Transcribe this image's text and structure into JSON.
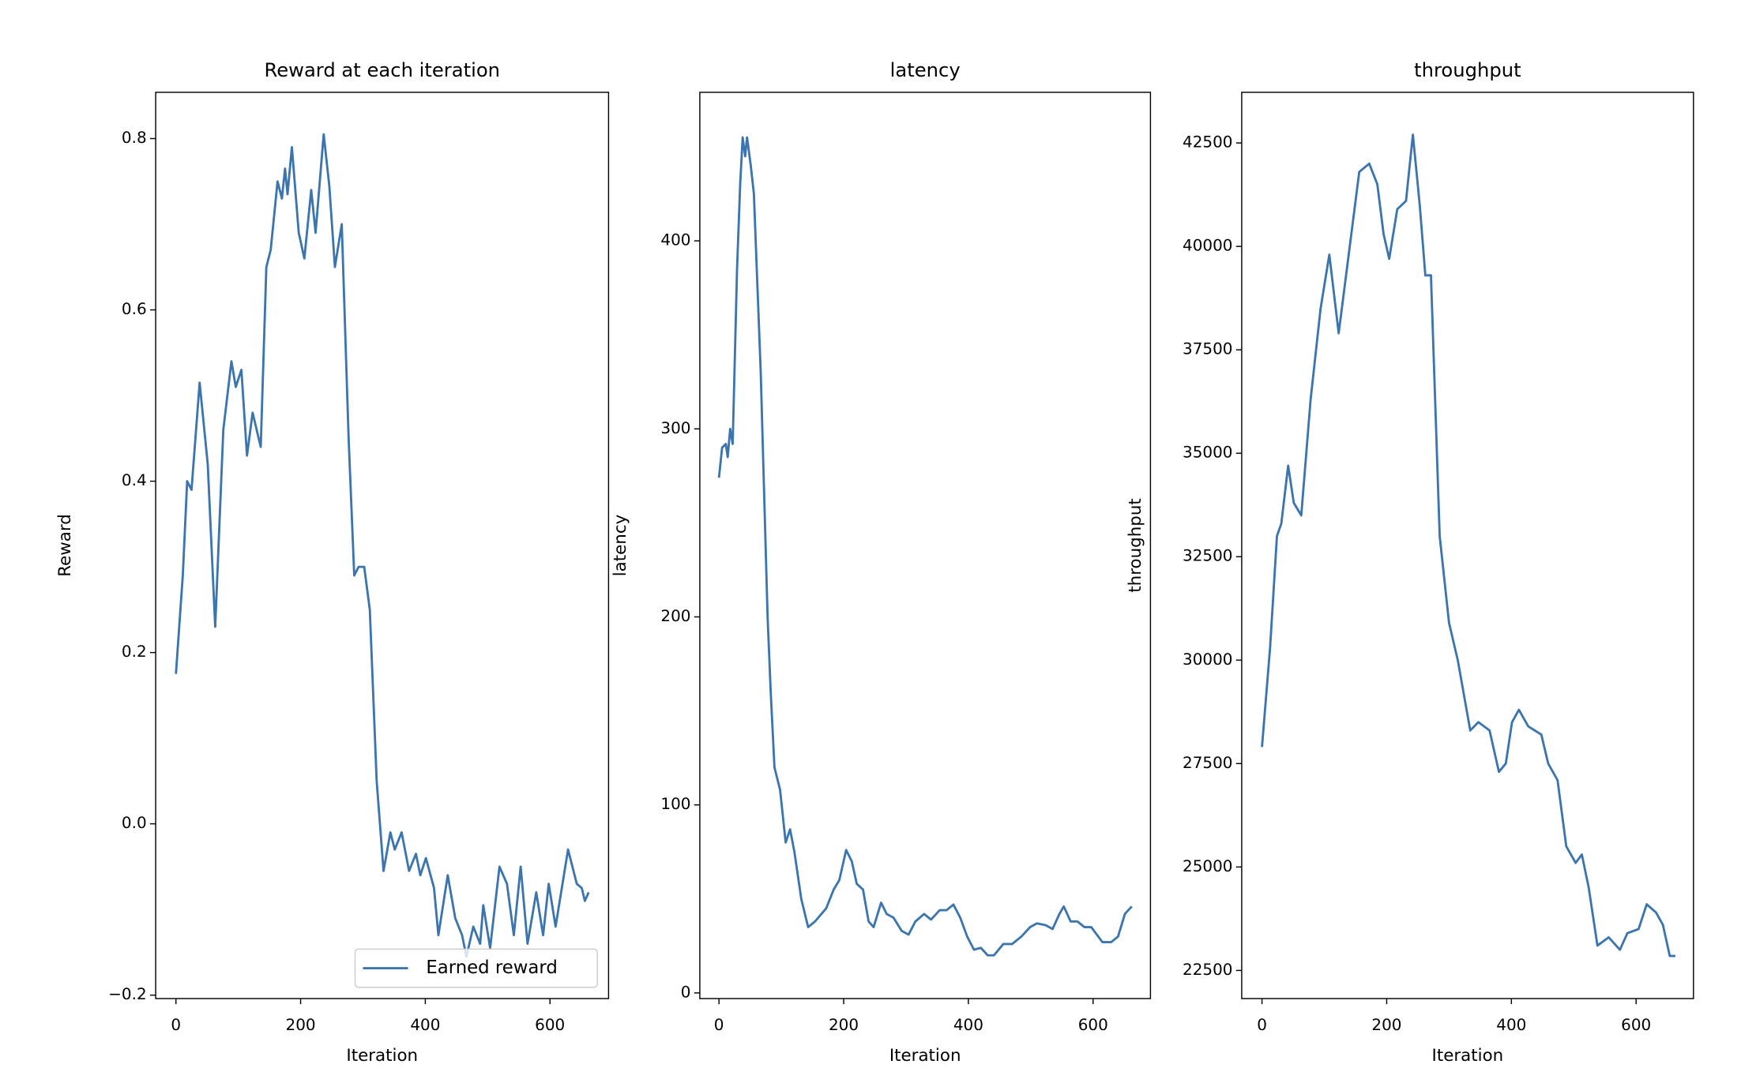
{
  "chart_data": [
    {
      "type": "line",
      "title": "Reward at each iteration",
      "xlabel": "Iteration",
      "ylabel": "Reward",
      "x": [
        0,
        11,
        18,
        25,
        38,
        51,
        63,
        76,
        89,
        96,
        105,
        114,
        123,
        136,
        145,
        152,
        163,
        170,
        175,
        179,
        186,
        197,
        206,
        217,
        224,
        237,
        246,
        255,
        266,
        277,
        286,
        293,
        302,
        311,
        322,
        333,
        344,
        351,
        362,
        374,
        385,
        392,
        401,
        414,
        421,
        436,
        448,
        459,
        466,
        477,
        488,
        493,
        504,
        519,
        531,
        542,
        553,
        564,
        578,
        589,
        598,
        609,
        629,
        643,
        651,
        656,
        662
      ],
      "series": [
        {
          "name": "Earned reward",
          "color": "#3b75af",
          "values": [
            0.175,
            0.29,
            0.4,
            0.39,
            0.515,
            0.42,
            0.23,
            0.46,
            0.54,
            0.51,
            0.53,
            0.43,
            0.48,
            0.44,
            0.65,
            0.67,
            0.75,
            0.73,
            0.765,
            0.735,
            0.79,
            0.69,
            0.66,
            0.74,
            0.69,
            0.805,
            0.745,
            0.65,
            0.7,
            0.45,
            0.29,
            0.3,
            0.3,
            0.25,
            0.05,
            -0.055,
            -0.01,
            -0.03,
            -0.01,
            -0.055,
            -0.035,
            -0.06,
            -0.04,
            -0.075,
            -0.13,
            -0.06,
            -0.11,
            -0.13,
            -0.155,
            -0.12,
            -0.14,
            -0.095,
            -0.145,
            -0.05,
            -0.07,
            -0.13,
            -0.05,
            -0.14,
            -0.08,
            -0.13,
            -0.07,
            -0.12,
            -0.03,
            -0.07,
            -0.075,
            -0.09,
            -0.08
          ]
        }
      ],
      "legend": "lower right",
      "xlim": [
        -32.5,
        694
      ],
      "xticks": [
        0,
        200,
        400,
        600
      ],
      "ylim": [
        -0.204,
        0.854
      ],
      "yticks": [
        {
          "value": -0.2,
          "label": "−0.2"
        },
        {
          "value": 0,
          "label": "0.0"
        },
        0.2,
        0.4,
        0.6,
        0.8
      ]
    },
    {
      "type": "line",
      "title": "latency",
      "xlabel": "Iteration",
      "ylabel": "latency",
      "color": "#3b75af",
      "x": [
        0,
        5,
        11,
        14,
        18,
        22,
        29,
        34,
        38,
        42,
        45,
        51,
        56,
        67,
        78,
        83,
        89,
        98,
        107,
        114,
        121,
        132,
        143,
        154,
        172,
        184,
        193,
        204,
        213,
        221,
        231,
        240,
        248,
        260,
        269,
        280,
        293,
        304,
        315,
        329,
        340,
        354,
        365,
        376,
        387,
        398,
        409,
        420,
        431,
        441,
        456,
        470,
        485,
        499,
        510,
        524,
        535,
        546,
        553,
        564,
        575,
        586,
        597,
        615,
        629,
        640,
        651,
        662
      ],
      "values": [
        274,
        290,
        292,
        285,
        300,
        292,
        385,
        430,
        455,
        445,
        455,
        440,
        425,
        330,
        200,
        160,
        120,
        108,
        80,
        87,
        75,
        50,
        35,
        38,
        45,
        55,
        60,
        76,
        70,
        58,
        55,
        38,
        35,
        48,
        42,
        40,
        33,
        31,
        38,
        42,
        39,
        44,
        44,
        47,
        40,
        30,
        23,
        24,
        20,
        20,
        26,
        26,
        30,
        35,
        37,
        36,
        34,
        42,
        46,
        38,
        38,
        35,
        35,
        27,
        27,
        30,
        42,
        46
      ],
      "xlim": [
        -30.7,
        692
      ],
      "xticks": [
        0,
        200,
        400,
        600
      ],
      "ylim": [
        -3,
        479
      ],
      "yticks": [
        0,
        100,
        200,
        300,
        400
      ]
    },
    {
      "type": "line",
      "title": "throughput",
      "xlabel": "Iteration",
      "ylabel": "throughput",
      "color": "#3b75af",
      "x": [
        0,
        13,
        24,
        31,
        42,
        51,
        63,
        78,
        94,
        108,
        123,
        145,
        156,
        172,
        185,
        195,
        204,
        217,
        231,
        242,
        253,
        262,
        271,
        285,
        300,
        314,
        334,
        347,
        365,
        380,
        391,
        401,
        412,
        427,
        448,
        459,
        474,
        488,
        503,
        513,
        524,
        538,
        556,
        574,
        586,
        604,
        617,
        632,
        643,
        654,
        663
      ],
      "values": [
        27900,
        30300,
        33000,
        33300,
        34700,
        33800,
        33500,
        36300,
        38500,
        39800,
        37900,
        40500,
        41800,
        42000,
        41500,
        40300,
        39700,
        40900,
        41100,
        42700,
        41000,
        39300,
        39300,
        33000,
        30900,
        30000,
        28300,
        28500,
        28300,
        27300,
        27500,
        28500,
        28800,
        28400,
        28200,
        27500,
        27100,
        25500,
        25100,
        25300,
        24500,
        23100,
        23300,
        23000,
        23400,
        23500,
        24100,
        23900,
        23600,
        22850,
        22850
      ],
      "xlim": [
        -32.5,
        692
      ],
      "xticks": [
        0,
        200,
        400,
        600
      ],
      "ylim": [
        21820,
        43724
      ],
      "yticks": [
        22500,
        25000,
        27500,
        30000,
        32500,
        35000,
        37500,
        40000,
        42500
      ]
    }
  ]
}
